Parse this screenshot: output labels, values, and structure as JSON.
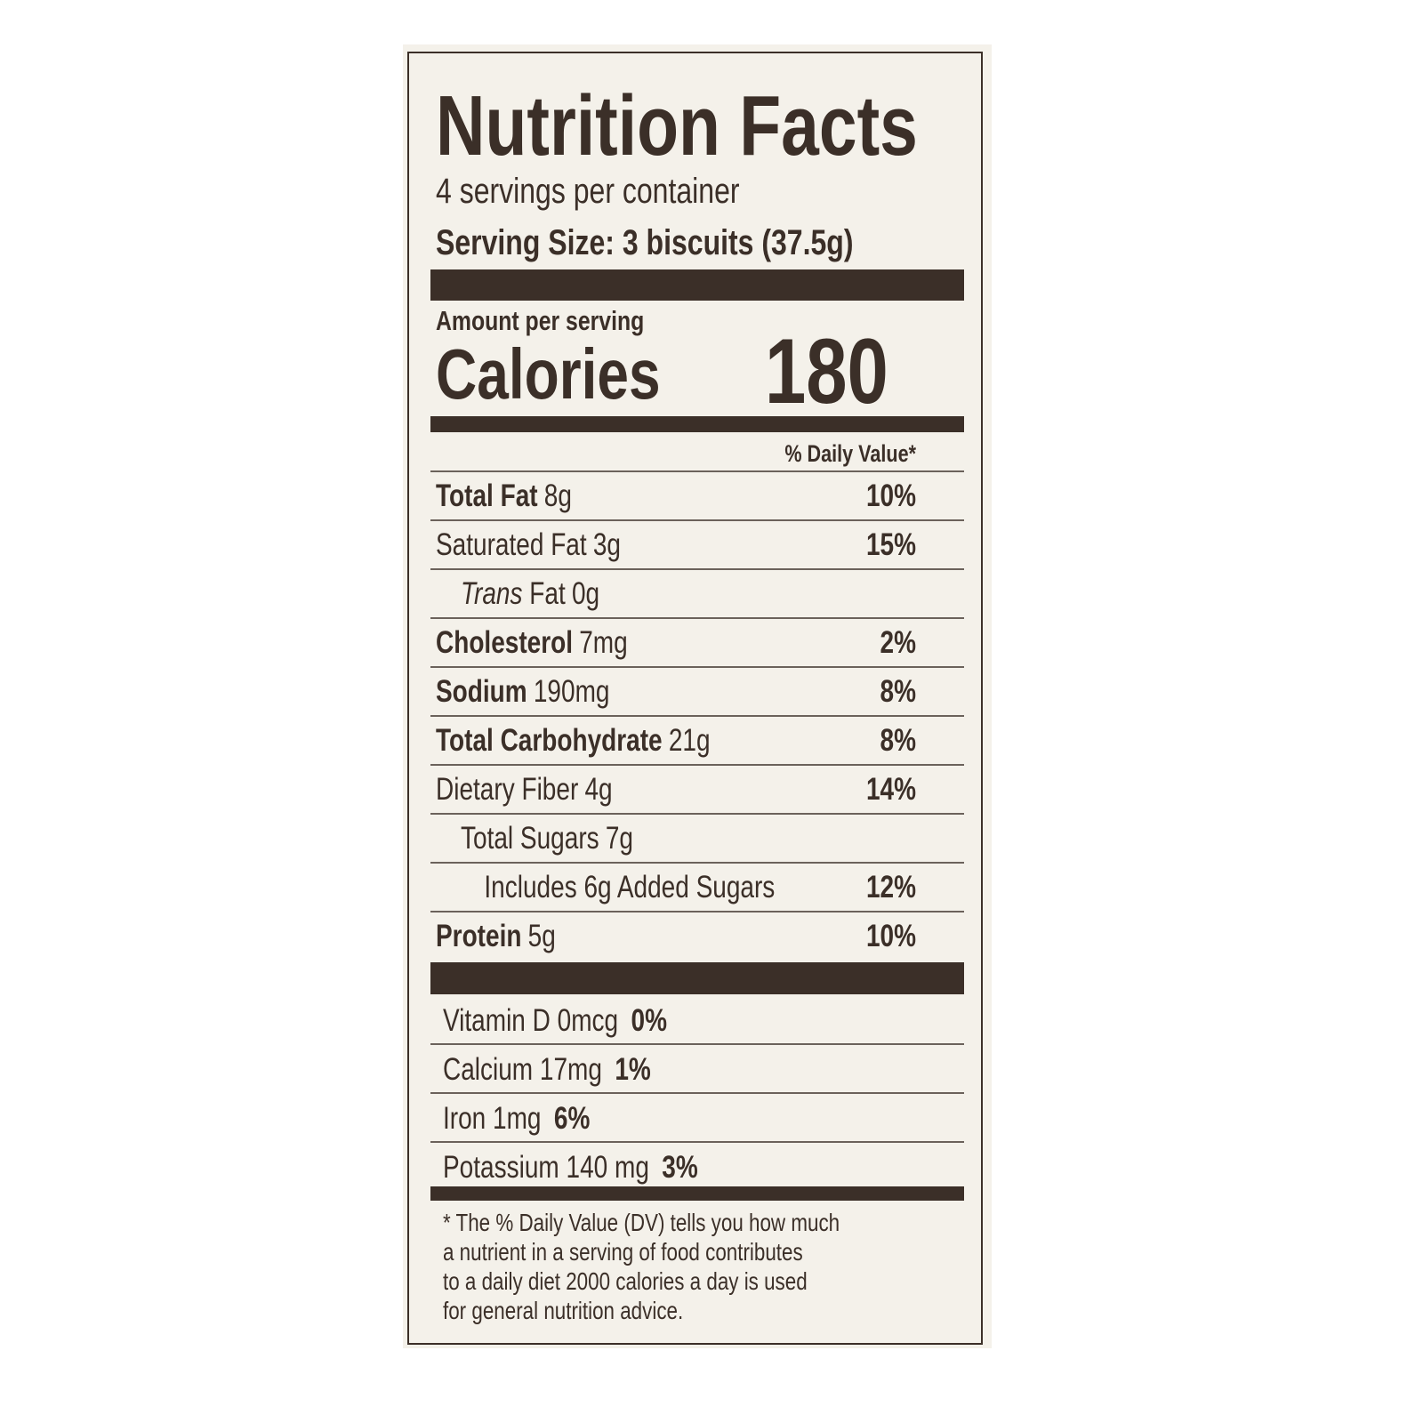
{
  "label": {
    "title": "Nutrition Facts",
    "servings_per_container": "4 servings per container",
    "serving_size": "Serving Size: 3 biscuits (37.5g)",
    "amount_per_serving": "Amount per serving",
    "calories_label": "Calories",
    "calories_value": "180",
    "daily_value_header": "% Daily Value*",
    "nutrients": [
      {
        "name": "Total Fat",
        "amount": "8g",
        "dv": "10%",
        "bold": true,
        "indent": 0
      },
      {
        "name": "Saturated Fat",
        "amount": "3g",
        "dv": "15%",
        "bold": false,
        "indent": 0
      },
      {
        "name": "Trans",
        "name_suffix": " Fat",
        "amount": "0g",
        "dv": "",
        "bold": false,
        "indent": 1,
        "italic": true
      },
      {
        "name": "Cholesterol",
        "amount": "7mg",
        "dv": "2%",
        "bold": true,
        "indent": 0
      },
      {
        "name": "Sodium",
        "amount": "190mg",
        "dv": "8%",
        "bold": true,
        "indent": 0
      },
      {
        "name": "Total Carbohydrate",
        "amount": "21g",
        "dv": "8%",
        "bold": true,
        "indent": 0
      },
      {
        "name": "Dietary Fiber",
        "amount": "4g",
        "dv": "14%",
        "bold": false,
        "indent": 0
      },
      {
        "name": "Total Sugars",
        "amount": "7g",
        "dv": "",
        "bold": false,
        "indent": 1
      },
      {
        "name": "Includes 6g Added Sugars",
        "amount": "",
        "dv": "12%",
        "bold": false,
        "indent": 2
      },
      {
        "name": "Protein",
        "amount": "5g",
        "dv": "10%",
        "bold": true,
        "indent": 0
      }
    ],
    "vitamins": [
      {
        "name": "Vitamin D 0mcg",
        "dv": "0%"
      },
      {
        "name": "Calcium 17mg",
        "dv": "1%"
      },
      {
        "name": "Iron 1mg",
        "dv": "6%"
      },
      {
        "name": "Potassium 140 mg",
        "dv": "3%"
      }
    ],
    "footnote": [
      "* The % Daily Value (DV) tells you how much",
      "a nutrient in a serving of food contributes",
      "to a daily diet 2000 calories a day is used",
      "for general nutrition advice."
    ]
  },
  "colors": {
    "ink": "#3b2f28",
    "paper": "#f4f1ea"
  }
}
